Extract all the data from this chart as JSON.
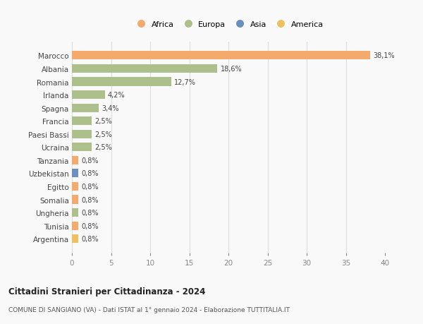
{
  "categories": [
    "Marocco",
    "Albania",
    "Romania",
    "Irlanda",
    "Spagna",
    "Francia",
    "Paesi Bassi",
    "Ucraina",
    "Tanzania",
    "Uzbekistan",
    "Egitto",
    "Somalia",
    "Ungheria",
    "Tunisia",
    "Argentina"
  ],
  "values": [
    38.1,
    18.6,
    12.7,
    4.2,
    3.4,
    2.5,
    2.5,
    2.5,
    0.8,
    0.8,
    0.8,
    0.8,
    0.8,
    0.8,
    0.8
  ],
  "labels": [
    "38,1%",
    "18,6%",
    "12,7%",
    "4,2%",
    "3,4%",
    "2,5%",
    "2,5%",
    "2,5%",
    "0,8%",
    "0,8%",
    "0,8%",
    "0,8%",
    "0,8%",
    "0,8%",
    "0,8%"
  ],
  "colors": [
    "#F4A96D",
    "#ADBF8A",
    "#ADBF8A",
    "#ADBF8A",
    "#ADBF8A",
    "#ADBF8A",
    "#ADBF8A",
    "#ADBF8A",
    "#F4A96D",
    "#6B8FBF",
    "#F4A96D",
    "#F4A96D",
    "#ADBF8A",
    "#F4A96D",
    "#F0C060"
  ],
  "continent": [
    "Africa",
    "Europa",
    "Europa",
    "Europa",
    "Europa",
    "Europa",
    "Europa",
    "Europa",
    "Africa",
    "Asia",
    "Africa",
    "Africa",
    "Europa",
    "Africa",
    "America"
  ],
  "legend_items": [
    {
      "label": "Africa",
      "color": "#F4A96D"
    },
    {
      "label": "Europa",
      "color": "#ADBF8A"
    },
    {
      "label": "Asia",
      "color": "#6B8FBF"
    },
    {
      "label": "America",
      "color": "#F0C060"
    }
  ],
  "title": "Cittadini Stranieri per Cittadinanza - 2024",
  "subtitle": "COMUNE DI SANGIANO (VA) - Dati ISTAT al 1° gennaio 2024 - Elaborazione TUTTITALIA.IT",
  "xlim": [
    0,
    40
  ],
  "xticks": [
    0,
    5,
    10,
    15,
    20,
    25,
    30,
    35,
    40
  ],
  "bg_color": "#f9f9f9",
  "grid_color": "#dddddd",
  "bar_height": 0.65
}
